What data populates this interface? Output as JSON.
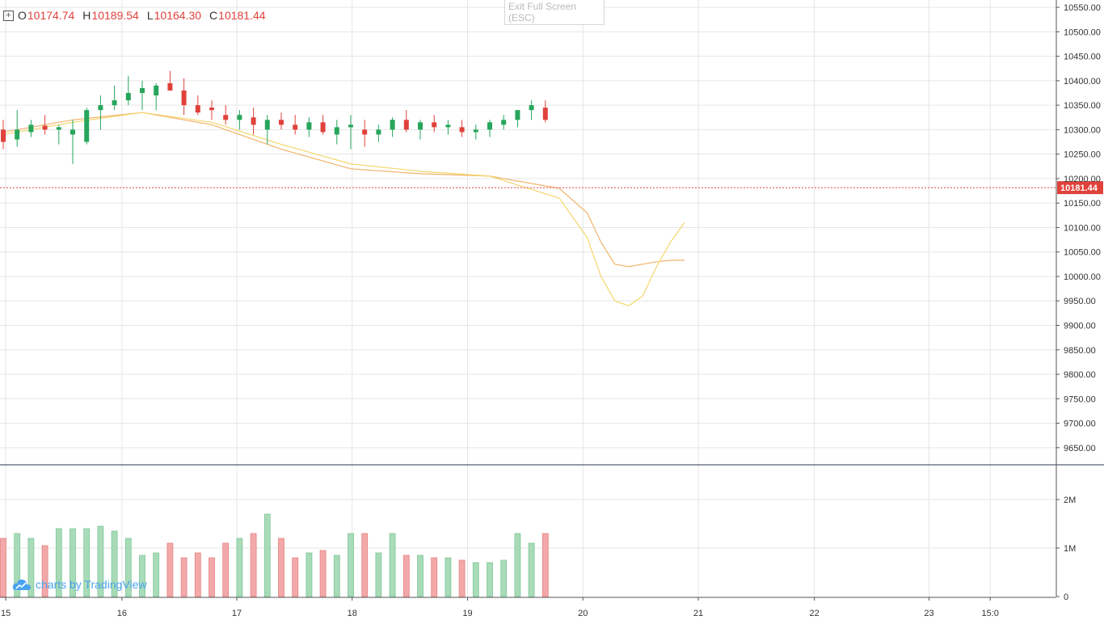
{
  "ohlc_header": {
    "open_label": "O",
    "open": "10174.74",
    "high_label": "H",
    "high": "10189.54",
    "low_label": "L",
    "low": "10164.30",
    "close_label": "C",
    "close": "10181.44"
  },
  "exit_fullscreen": {
    "line1": "Exit Full Screen",
    "line2": "(ESC)"
  },
  "watermark": "charts by TradingView",
  "colors": {
    "up": "#26a65b",
    "down": "#e0413b",
    "up_volume": "#a8dbb8",
    "down_volume": "#f3a9a9",
    "ma_fast": "#ef6a4b",
    "ma_slow": "#f2b36b",
    "ma_slowest": "#f5d66e",
    "grid": "#e6e6e6",
    "last_price": "#e0413b"
  },
  "chart_data": {
    "type": "candlestick",
    "price_axis": {
      "ticks": [
        "10550.00",
        "10500.00",
        "10450.00",
        "10400.00",
        "10350.00",
        "10300.00",
        "10250.00",
        "10200.00",
        "10150.00",
        "10100.00",
        "10050.00",
        "10000.00",
        "9950.00",
        "9900.00",
        "9850.00",
        "9800.00",
        "9750.00",
        "9700.00",
        "9650.00"
      ],
      "last_price_label": "10181.44",
      "range": [
        9615,
        10565
      ]
    },
    "volume_axis": {
      "ticks": [
        "2M",
        "1M",
        "0"
      ],
      "range": [
        0,
        2700000
      ]
    },
    "time_axis": {
      "labels": [
        "15",
        "16",
        "17",
        "18",
        "19",
        "20",
        "21",
        "22",
        "23",
        "15:0"
      ],
      "label_index": [
        0.18,
        8.54,
        16.8,
        25.1,
        33.4,
        41.7,
        50.0,
        58.35,
        66.6,
        71.0
      ]
    },
    "ma_slow_x": [
      0,
      5,
      10,
      15,
      20,
      25,
      30,
      35,
      40,
      42,
      43,
      44,
      45,
      46,
      47,
      48,
      49
    ],
    "ma_slow": [
      10295,
      10320,
      10335,
      10310,
      10260,
      10220,
      10210,
      10205,
      10180,
      10130,
      10070,
      10025,
      10020,
      10025,
      10030,
      10033,
      10033
    ],
    "ma_slowest_x": [
      0,
      5,
      10,
      15,
      20,
      25,
      30,
      35,
      40,
      42,
      43,
      44,
      45,
      46,
      47,
      48,
      49
    ],
    "ma_slowest": [
      10290,
      10315,
      10335,
      10315,
      10270,
      10230,
      10215,
      10205,
      10160,
      10080,
      10000,
      9950,
      9940,
      9960,
      10020,
      10070,
      10110
    ],
    "candles": [
      [
        10300,
        10320,
        10260,
        10275,
        1.2
      ],
      [
        10280,
        10340,
        10265,
        10300,
        1.3
      ],
      [
        10295,
        10320,
        10285,
        10310,
        1.2
      ],
      [
        10308,
        10330,
        10290,
        10300,
        1.05
      ],
      [
        10300,
        10310,
        10270,
        10305,
        1.4
      ],
      [
        10290,
        10320,
        10230,
        10300,
        1.4
      ],
      [
        10275,
        10345,
        10270,
        10340,
        1.4
      ],
      [
        10340,
        10370,
        10300,
        10350,
        1.45
      ],
      [
        10350,
        10390,
        10340,
        10360,
        1.35
      ],
      [
        10360,
        10410,
        10350,
        10375,
        1.2
      ],
      [
        10375,
        10400,
        10340,
        10385,
        0.85
      ],
      [
        10370,
        10395,
        10340,
        10390,
        0.9
      ],
      [
        10395,
        10420,
        10380,
        10380,
        1.1
      ],
      [
        10380,
        10405,
        10330,
        10350,
        0.8
      ],
      [
        10350,
        10370,
        10330,
        10335,
        0.9
      ],
      [
        10345,
        10360,
        10320,
        10340,
        0.8
      ],
      [
        10330,
        10350,
        10310,
        10320,
        1.1
      ],
      [
        10320,
        10340,
        10300,
        10330,
        1.2
      ],
      [
        10325,
        10345,
        10290,
        10310,
        1.3
      ],
      [
        10300,
        10330,
        10270,
        10320,
        1.7
      ],
      [
        10320,
        10335,
        10300,
        10310,
        1.2
      ],
      [
        10310,
        10330,
        10290,
        10300,
        0.8
      ],
      [
        10300,
        10325,
        10285,
        10315,
        0.9
      ],
      [
        10315,
        10330,
        10290,
        10295,
        0.95
      ],
      [
        10290,
        10320,
        10270,
        10305,
        0.85
      ],
      [
        10305,
        10330,
        10260,
        10310,
        1.3
      ],
      [
        10300,
        10320,
        10265,
        10290,
        1.3
      ],
      [
        10290,
        10310,
        10275,
        10300,
        0.9
      ],
      [
        10300,
        10325,
        10285,
        10320,
        1.3
      ],
      [
        10320,
        10340,
        10295,
        10300,
        0.85
      ],
      [
        10300,
        10320,
        10280,
        10315,
        0.85
      ],
      [
        10315,
        10330,
        10295,
        10305,
        0.8
      ],
      [
        10305,
        10320,
        10290,
        10310,
        0.8
      ],
      [
        10305,
        10320,
        10285,
        10295,
        0.75
      ],
      [
        10295,
        10310,
        10280,
        10300,
        0.7
      ],
      [
        10300,
        10320,
        10285,
        10315,
        0.7
      ],
      [
        10310,
        10330,
        10300,
        10320,
        0.75
      ],
      [
        10320,
        10340,
        10305,
        10340,
        1.3
      ],
      [
        10340,
        10360,
        10320,
        10350,
        1.1
      ],
      [
        10345,
        10360,
        10315,
        10320,
        1.3
      ]
    ]
  }
}
